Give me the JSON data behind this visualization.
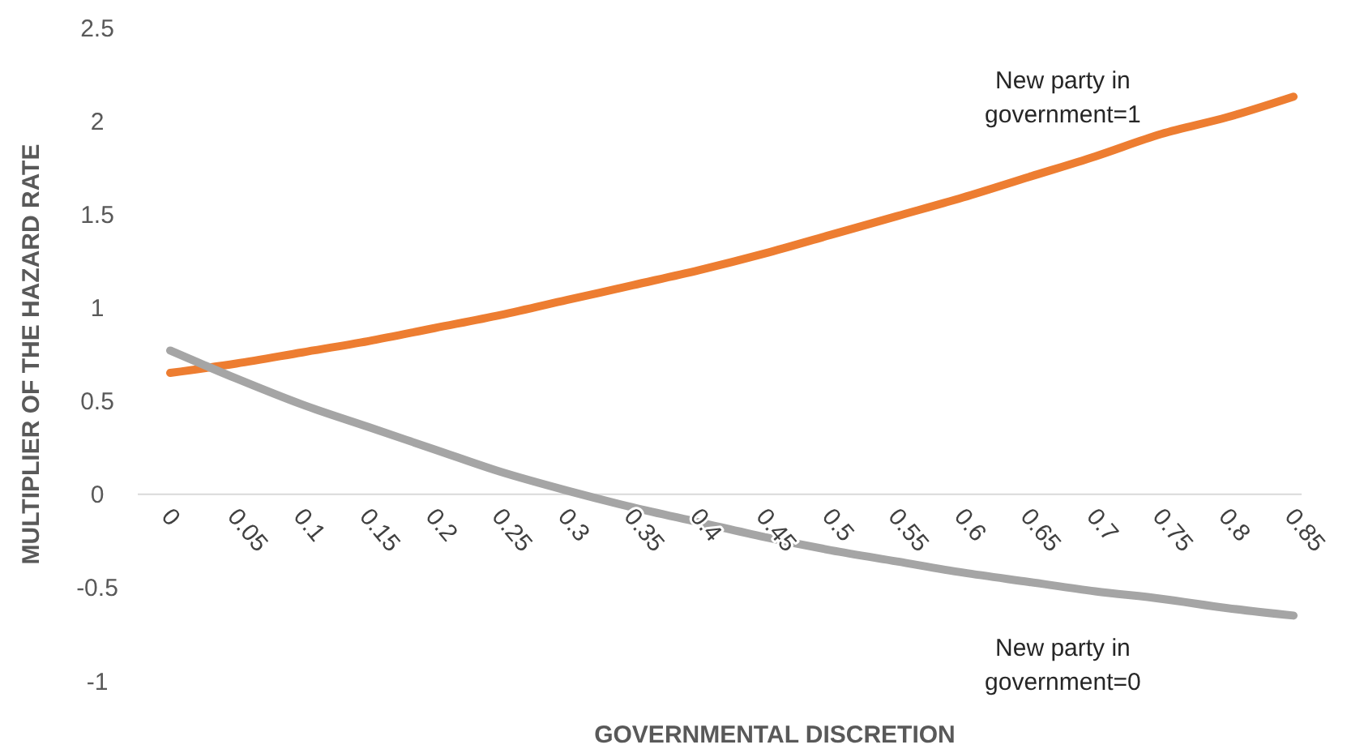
{
  "chart_data": {
    "type": "line",
    "xlabel": "GOVERNMENTAL DISCRETION",
    "ylabel": "MULTIPLIER OF THE HAZARD RATE",
    "categories": [
      "0",
      "0.05",
      "0.1",
      "0.15",
      "0.2",
      "0.25",
      "0.3",
      "0.35",
      "0.4",
      "0.45",
      "0.5",
      "0.55",
      "0.6",
      "0.65",
      "0.7",
      "0.75",
      "0.8",
      "0.85"
    ],
    "series": [
      {
        "name": "New party in government=1",
        "color": "#ed7d31",
        "values": [
          0.65,
          0.7,
          0.76,
          0.82,
          0.89,
          0.96,
          1.04,
          1.12,
          1.2,
          1.29,
          1.39,
          1.49,
          1.59,
          1.7,
          1.81,
          1.93,
          2.02,
          2.13
        ]
      },
      {
        "name": "New party in government=0",
        "color": "#a5a5a5",
        "values": [
          0.77,
          0.62,
          0.48,
          0.36,
          0.24,
          0.12,
          0.02,
          -0.07,
          -0.15,
          -0.23,
          -0.3,
          -0.36,
          -0.42,
          -0.47,
          -0.52,
          -0.56,
          -0.61,
          -0.65
        ]
      }
    ],
    "ylim": [
      -1,
      2.5
    ],
    "yticks": [
      -1,
      -0.5,
      0,
      0.5,
      1,
      1.5,
      2,
      2.5
    ],
    "grid": false,
    "legend": false,
    "marker": "none",
    "line_style": "solid"
  }
}
